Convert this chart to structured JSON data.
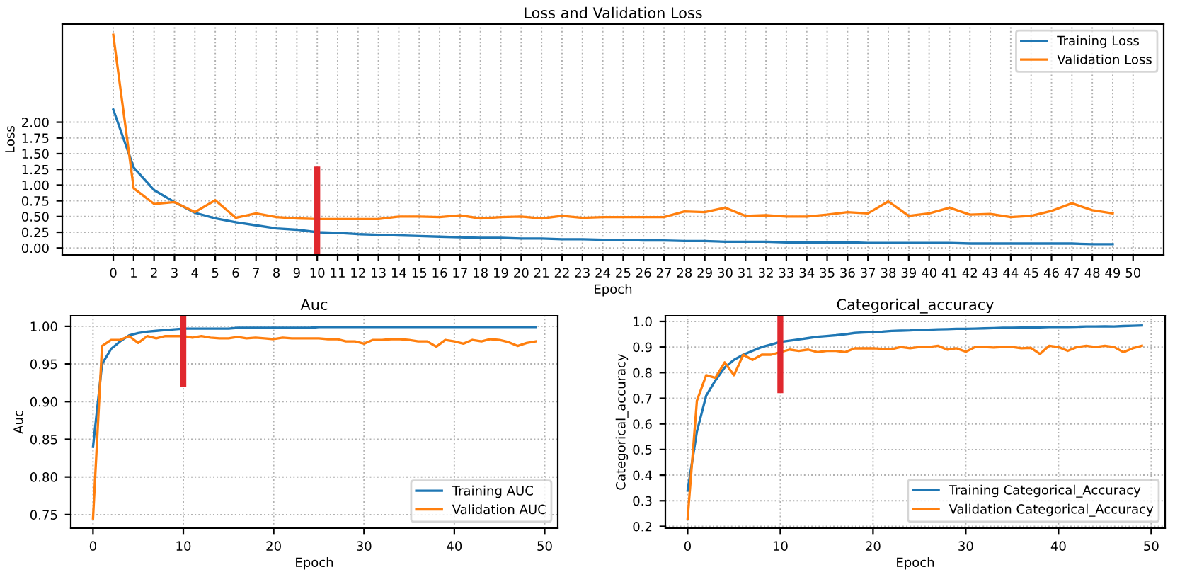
{
  "chart_data": [
    {
      "type": "line",
      "title": "Loss and Validation Loss",
      "xlabel": "Epoch",
      "ylabel": "Loss",
      "x": [
        0,
        1,
        2,
        3,
        4,
        5,
        6,
        7,
        8,
        9,
        10,
        11,
        12,
        13,
        14,
        15,
        16,
        17,
        18,
        19,
        20,
        21,
        22,
        23,
        24,
        25,
        26,
        27,
        28,
        29,
        30,
        31,
        32,
        33,
        34,
        35,
        36,
        37,
        38,
        39,
        40,
        41,
        42,
        43,
        44,
        45,
        46,
        47,
        48,
        49
      ],
      "series": [
        {
          "name": "Training Loss",
          "color": "#1f77b4",
          "values": [
            2.2,
            1.28,
            0.92,
            0.73,
            0.56,
            0.47,
            0.41,
            0.36,
            0.31,
            0.29,
            0.25,
            0.24,
            0.22,
            0.21,
            0.2,
            0.19,
            0.18,
            0.17,
            0.16,
            0.16,
            0.15,
            0.15,
            0.14,
            0.14,
            0.13,
            0.13,
            0.12,
            0.12,
            0.11,
            0.11,
            0.1,
            0.1,
            0.1,
            0.09,
            0.09,
            0.09,
            0.09,
            0.08,
            0.08,
            0.08,
            0.08,
            0.08,
            0.07,
            0.07,
            0.07,
            0.07,
            0.07,
            0.07,
            0.06,
            0.06
          ]
        },
        {
          "name": "Validation Loss",
          "color": "#ff7f0e",
          "values": [
            3.39,
            0.95,
            0.7,
            0.73,
            0.57,
            0.76,
            0.48,
            0.55,
            0.49,
            0.47,
            0.46,
            0.46,
            0.46,
            0.46,
            0.5,
            0.5,
            0.49,
            0.52,
            0.47,
            0.49,
            0.5,
            0.47,
            0.51,
            0.48,
            0.49,
            0.49,
            0.49,
            0.49,
            0.58,
            0.57,
            0.64,
            0.51,
            0.52,
            0.5,
            0.5,
            0.53,
            0.57,
            0.55,
            0.74,
            0.51,
            0.55,
            0.64,
            0.53,
            0.54,
            0.49,
            0.51,
            0.59,
            0.71,
            0.6,
            0.55
          ]
        }
      ],
      "xlim": [
        -2.5,
        51.5
      ],
      "ylim": [
        -0.11,
        3.56
      ],
      "xticks": [
        0,
        1,
        2,
        3,
        4,
        5,
        6,
        7,
        8,
        9,
        10,
        11,
        12,
        13,
        14,
        15,
        16,
        17,
        18,
        19,
        20,
        21,
        22,
        23,
        24,
        25,
        26,
        27,
        28,
        29,
        30,
        31,
        32,
        33,
        34,
        35,
        36,
        37,
        38,
        39,
        40,
        41,
        42,
        43,
        44,
        45,
        46,
        47,
        48,
        49,
        50
      ],
      "yticks": [
        {
          "value": 0,
          "label": "0.00"
        },
        {
          "value": 0.25,
          "label": "0.25"
        },
        {
          "value": 0.5,
          "label": "0.50"
        },
        {
          "value": 0.75,
          "label": "0.75"
        },
        {
          "value": 1,
          "label": "1.00"
        },
        {
          "value": 1.25,
          "label": "1.25"
        },
        {
          "value": 1.5,
          "label": "1.50"
        },
        {
          "value": 1.75,
          "label": "1.75"
        },
        {
          "value": 2,
          "label": "2.00"
        }
      ],
      "ref_lines": [
        {
          "axis": "x",
          "value": 10,
          "color": "#e0282e"
        }
      ],
      "grid": true,
      "legend": "top right"
    },
    {
      "type": "line",
      "title": "Auc",
      "xlabel": "Epoch",
      "ylabel": "Auc",
      "x": [
        0,
        1,
        2,
        3,
        4,
        5,
        6,
        7,
        8,
        9,
        10,
        11,
        12,
        13,
        14,
        15,
        16,
        17,
        18,
        19,
        20,
        21,
        22,
        23,
        24,
        25,
        26,
        27,
        28,
        29,
        30,
        31,
        32,
        33,
        34,
        35,
        36,
        37,
        38,
        39,
        40,
        41,
        42,
        43,
        44,
        45,
        46,
        47,
        48,
        49
      ],
      "series": [
        {
          "name": "Training AUC",
          "color": "#1f77b4",
          "values": [
            0.84,
            0.95,
            0.97,
            0.98,
            0.988,
            0.991,
            0.993,
            0.994,
            0.995,
            0.996,
            0.997,
            0.997,
            0.997,
            0.997,
            0.997,
            0.997,
            0.998,
            0.998,
            0.998,
            0.998,
            0.998,
            0.998,
            0.998,
            0.998,
            0.998,
            0.999,
            0.999,
            0.999,
            0.999,
            0.999,
            0.999,
            0.999,
            0.999,
            0.999,
            0.999,
            0.999,
            0.999,
            0.999,
            0.999,
            0.999,
            0.999,
            0.999,
            0.999,
            0.999,
            0.999,
            0.999,
            0.999,
            0.999,
            0.999,
            0.999
          ]
        },
        {
          "name": "Validation AUC",
          "color": "#ff7f0e",
          "values": [
            0.745,
            0.974,
            0.982,
            0.982,
            0.987,
            0.978,
            0.987,
            0.984,
            0.987,
            0.987,
            0.987,
            0.985,
            0.987,
            0.985,
            0.984,
            0.984,
            0.986,
            0.984,
            0.985,
            0.984,
            0.983,
            0.985,
            0.984,
            0.984,
            0.984,
            0.984,
            0.983,
            0.983,
            0.98,
            0.98,
            0.977,
            0.982,
            0.982,
            0.983,
            0.983,
            0.982,
            0.98,
            0.98,
            0.973,
            0.982,
            0.98,
            0.977,
            0.982,
            0.98,
            0.983,
            0.982,
            0.979,
            0.974,
            0.978,
            0.98
          ]
        }
      ],
      "xlim": [
        -2.46,
        51.45
      ],
      "ylim": [
        0.732,
        1.014
      ],
      "xticks": [
        0,
        10,
        20,
        30,
        40,
        50
      ],
      "yticks": [
        {
          "value": 0.75,
          "label": "0.75"
        },
        {
          "value": 0.8,
          "label": "0.80"
        },
        {
          "value": 0.85,
          "label": "0.85"
        },
        {
          "value": 0.9,
          "label": "0.90"
        },
        {
          "value": 0.95,
          "label": "0.95"
        },
        {
          "value": 1,
          "label": "1.00"
        }
      ],
      "ref_lines": [
        {
          "axis": "x",
          "value": 10,
          "color": "#e0282e"
        }
      ],
      "grid": true,
      "legend": "bottom right"
    },
    {
      "type": "line",
      "title": "Categorical_accuracy",
      "xlabel": "Epoch",
      "ylabel": "Categorical_accuracy",
      "x": [
        0,
        1,
        2,
        3,
        4,
        5,
        6,
        7,
        8,
        9,
        10,
        11,
        12,
        13,
        14,
        15,
        16,
        17,
        18,
        19,
        20,
        21,
        22,
        23,
        24,
        25,
        26,
        27,
        28,
        29,
        30,
        31,
        32,
        33,
        34,
        35,
        36,
        37,
        38,
        39,
        40,
        41,
        42,
        43,
        44,
        45,
        46,
        47,
        48,
        49
      ],
      "series": [
        {
          "name": "Training Categorical_Accuracy",
          "color": "#1f77b4",
          "values": [
            0.34,
            0.57,
            0.71,
            0.77,
            0.82,
            0.85,
            0.87,
            0.885,
            0.9,
            0.91,
            0.92,
            0.925,
            0.93,
            0.935,
            0.94,
            0.943,
            0.946,
            0.95,
            0.955,
            0.957,
            0.958,
            0.96,
            0.963,
            0.964,
            0.965,
            0.967,
            0.968,
            0.969,
            0.97,
            0.971,
            0.971,
            0.972,
            0.973,
            0.974,
            0.975,
            0.975,
            0.976,
            0.977,
            0.977,
            0.978,
            0.978,
            0.978,
            0.979,
            0.98,
            0.98,
            0.981,
            0.98,
            0.982,
            0.983,
            0.984
          ]
        },
        {
          "name": "Validation Categorical_Accuracy",
          "color": "#ff7f0e",
          "values": [
            0.23,
            0.69,
            0.79,
            0.78,
            0.84,
            0.79,
            0.87,
            0.85,
            0.87,
            0.87,
            0.88,
            0.89,
            0.885,
            0.89,
            0.88,
            0.885,
            0.885,
            0.88,
            0.895,
            0.895,
            0.895,
            0.893,
            0.892,
            0.9,
            0.895,
            0.9,
            0.9,
            0.905,
            0.89,
            0.895,
            0.882,
            0.9,
            0.9,
            0.898,
            0.9,
            0.9,
            0.895,
            0.897,
            0.873,
            0.905,
            0.9,
            0.885,
            0.9,
            0.905,
            0.9,
            0.905,
            0.9,
            0.88,
            0.895,
            0.905
          ]
        }
      ],
      "xlim": [
        -2.4,
        51.5
      ],
      "ylim": [
        0.193,
        1.022
      ],
      "xticks": [
        0,
        10,
        20,
        30,
        40,
        50
      ],
      "yticks": [
        0.2,
        0.3,
        0.4,
        0.5,
        0.6,
        0.7,
        0.8,
        0.9,
        {
          "value": 1,
          "label": "1.0"
        }
      ],
      "ref_lines": [
        {
          "axis": "x",
          "value": 10,
          "color": "#e0282e"
        }
      ],
      "grid": true,
      "legend": "bottom right"
    }
  ]
}
